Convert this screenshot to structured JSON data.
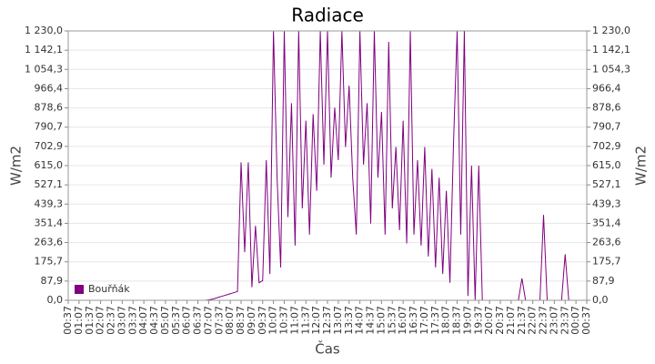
{
  "chart_data": {
    "type": "line",
    "title": "Radiace",
    "y_label": "W/m2",
    "x_label": "Čas",
    "categories": [
      "00:37",
      null,
      null,
      "01:07",
      null,
      null,
      "01:37",
      null,
      null,
      "02:07",
      null,
      null,
      "02:37",
      null,
      null,
      "03:07",
      null,
      null,
      "03:37",
      null,
      null,
      "04:07",
      null,
      null,
      "04:37",
      null,
      null,
      "05:07",
      null,
      null,
      "05:37",
      null,
      null,
      "06:07",
      null,
      null,
      "06:37",
      null,
      null,
      "07:07",
      null,
      null,
      "07:37",
      null,
      null,
      "08:07",
      null,
      null,
      "08:37",
      null,
      null,
      "09:07",
      null,
      null,
      "09:37",
      null,
      null,
      "10:07",
      null,
      null,
      "10:37",
      null,
      null,
      "11:07",
      null,
      null,
      "11:37",
      null,
      null,
      "12:07",
      null,
      null,
      "12:37",
      null,
      null,
      "13:07",
      null,
      null,
      "13:37",
      null,
      null,
      "14:07",
      null,
      null,
      "14:37",
      null,
      null,
      "15:07",
      null,
      null,
      "15:37",
      null,
      null,
      "16:07",
      null,
      null,
      "16:37",
      null,
      null,
      "17:07",
      null,
      null,
      "17:37",
      null,
      null,
      "18:07",
      null,
      null,
      "18:37",
      null,
      null,
      "19:07",
      null,
      null,
      "19:37",
      null,
      null,
      "20:07",
      null,
      null,
      "20:37",
      null,
      null,
      "21:07",
      null,
      null,
      "21:37",
      null,
      null,
      "22:07",
      null,
      null,
      "22:37",
      null,
      null,
      "23:07",
      null,
      null,
      "23:37",
      null,
      null,
      "00:07",
      null,
      null,
      "00:37"
    ],
    "series": [
      {
        "name": "Bouřňák",
        "color": "#800080",
        "values": [
          0,
          0,
          0,
          0,
          0,
          0,
          0,
          0,
          0,
          0,
          0,
          0,
          0,
          0,
          0,
          0,
          0,
          0,
          0,
          0,
          0,
          0,
          0,
          0,
          0,
          0,
          0,
          0,
          0,
          0,
          0,
          0,
          0,
          0,
          0,
          0,
          0,
          0,
          0,
          2,
          5,
          10,
          15,
          20,
          25,
          30,
          35,
          40,
          630,
          220,
          630,
          60,
          340,
          80,
          90,
          640,
          120,
          1230,
          560,
          150,
          1230,
          380,
          900,
          250,
          1230,
          420,
          820,
          300,
          850,
          500,
          1230,
          620,
          1230,
          560,
          880,
          640,
          1230,
          700,
          980,
          560,
          300,
          1230,
          620,
          900,
          350,
          1230,
          560,
          860,
          300,
          1180,
          420,
          700,
          320,
          820,
          260,
          1230,
          300,
          640,
          250,
          700,
          200,
          600,
          150,
          560,
          120,
          500,
          80,
          720,
          1230,
          300,
          1230,
          20,
          615,
          0,
          615,
          0,
          0,
          0,
          0,
          0,
          0,
          0,
          0,
          0,
          0,
          0,
          100,
          0,
          0,
          0,
          0,
          0,
          390,
          0,
          0,
          0,
          0,
          0,
          210,
          0,
          0,
          0,
          0,
          0,
          0
        ]
      }
    ],
    "ylim": [
      0,
      1230
    ],
    "yticks": [
      {
        "value": 0,
        "label": "0,0"
      },
      {
        "value": 87.9,
        "label": "87,9"
      },
      {
        "value": 175.7,
        "label": "175,7"
      },
      {
        "value": 263.6,
        "label": "263,6"
      },
      {
        "value": 351.4,
        "label": "351,4"
      },
      {
        "value": 439.3,
        "label": "439,3"
      },
      {
        "value": 527.1,
        "label": "527,1"
      },
      {
        "value": 615,
        "label": "615,0"
      },
      {
        "value": 702.9,
        "label": "702,9"
      },
      {
        "value": 790.7,
        "label": "790,7"
      },
      {
        "value": 878.6,
        "label": "878,6"
      },
      {
        "value": 966.4,
        "label": "966,4"
      },
      {
        "value": 1054.3,
        "label": "1 054,3"
      },
      {
        "value": 1142.1,
        "label": "1 142,1"
      },
      {
        "value": 1230,
        "label": "1 230,0"
      }
    ],
    "grid": true,
    "legend": "lower left"
  }
}
